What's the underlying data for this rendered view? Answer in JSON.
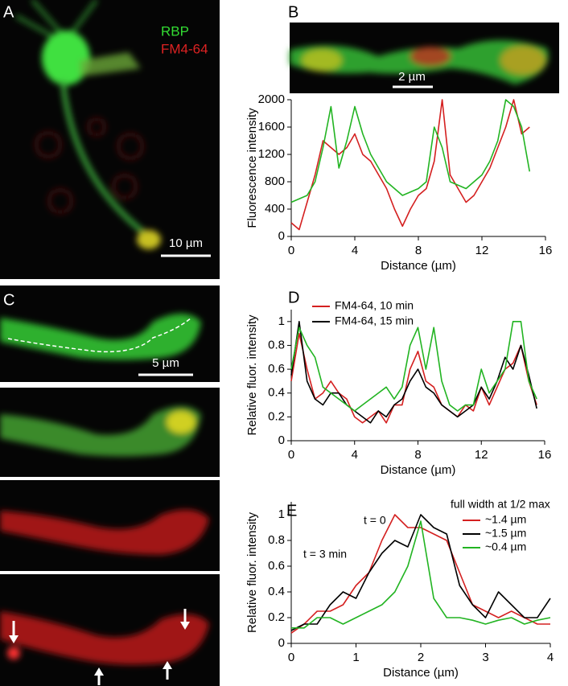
{
  "figure": {
    "panel_labels": [
      "A",
      "B",
      "C",
      "D",
      "E"
    ],
    "image_a": {
      "channels": [
        "RBP",
        "FM4-64"
      ],
      "scale_bar": "10 µm"
    },
    "image_b": {
      "scale_bar": "2 µm"
    },
    "image_c": {
      "scale_bar": "5 µm"
    }
  },
  "chart_data": [
    {
      "type": "line",
      "xlabel": "Distance (µm)",
      "ylabel": "Fluorescence intensity",
      "x": [
        0,
        0.5,
        1,
        1.5,
        2,
        2.5,
        3,
        3.5,
        4,
        4.5,
        5,
        5.5,
        6,
        6.5,
        7,
        7.5,
        8,
        8.5,
        9,
        9.5,
        10,
        10.5,
        11,
        11.5,
        12,
        12.5,
        13,
        13.5,
        14,
        14.5,
        15
      ],
      "series": [
        {
          "color": "#d42020",
          "values": [
            200,
            100,
            500,
            900,
            1400,
            1300,
            1200,
            1300,
            1500,
            1200,
            1100,
            900,
            700,
            400,
            150,
            400,
            600,
            700,
            1100,
            2000,
            900,
            700,
            500,
            600,
            800,
            1000,
            1300,
            1600,
            2000,
            1500,
            1600
          ]
        },
        {
          "color": "#22b422",
          "values": [
            500,
            550,
            600,
            800,
            1300,
            1900,
            1000,
            1400,
            1900,
            1500,
            1200,
            1000,
            800,
            700,
            600,
            650,
            700,
            800,
            1600,
            1300,
            800,
            750,
            700,
            800,
            900,
            1100,
            1400,
            2000,
            1900,
            1600,
            950
          ]
        }
      ],
      "xlim": [
        0,
        16
      ],
      "ylim": [
        0,
        2000
      ],
      "xticks": [
        0,
        4,
        8,
        12,
        16
      ],
      "yticks": [
        0,
        400,
        800,
        1200,
        1600,
        2000
      ]
    },
    {
      "type": "line",
      "xlabel": "Distance (µm)",
      "ylabel": "Relative fluor. intensity",
      "x": [
        0,
        0.5,
        1,
        1.5,
        2,
        2.5,
        3,
        3.5,
        4,
        4.5,
        5,
        5.5,
        6,
        6.5,
        7,
        7.5,
        8,
        8.5,
        9,
        9.5,
        10,
        10.5,
        11,
        11.5,
        12,
        12.5,
        13,
        13.5,
        14,
        14.5,
        15,
        15.5
      ],
      "series": [
        {
          "name": "FM4-64, 10 min",
          "color": "#d42020",
          "values": [
            0.5,
            0.9,
            0.6,
            0.35,
            0.4,
            0.5,
            0.4,
            0.35,
            0.2,
            0.15,
            0.2,
            0.25,
            0.15,
            0.3,
            0.3,
            0.6,
            0.75,
            0.5,
            0.45,
            0.3,
            0.25,
            0.2,
            0.3,
            0.25,
            0.45,
            0.3,
            0.45,
            0.6,
            0.65,
            0.8,
            0.5,
            0.3
          ]
        },
        {
          "name": "FM4-64, 15 min",
          "color": "#000000",
          "values": [
            0.55,
            1.0,
            0.5,
            0.35,
            0.3,
            0.4,
            0.4,
            0.3,
            0.25,
            0.2,
            0.15,
            0.25,
            0.2,
            0.3,
            0.35,
            0.5,
            0.6,
            0.45,
            0.4,
            0.3,
            0.25,
            0.2,
            0.25,
            0.3,
            0.45,
            0.35,
            0.5,
            0.7,
            0.6,
            0.8,
            0.55,
            0.27
          ]
        },
        {
          "color": "#22b422",
          "values": [
            0.6,
            0.95,
            0.8,
            0.7,
            0.45,
            0.4,
            0.35,
            0.3,
            0.25,
            0.3,
            0.35,
            0.4,
            0.45,
            0.35,
            0.45,
            0.8,
            0.95,
            0.6,
            0.95,
            0.5,
            0.3,
            0.25,
            0.3,
            0.3,
            0.6,
            0.4,
            0.5,
            0.6,
            1.0,
            1.0,
            0.5,
            0.35
          ]
        }
      ],
      "xlim": [
        0,
        16
      ],
      "ylim": [
        0,
        1.1
      ],
      "xticks": [
        0,
        4,
        8,
        12,
        16
      ],
      "yticks": [
        0,
        0.2,
        0.4,
        0.6,
        0.8,
        1
      ]
    },
    {
      "type": "line",
      "xlabel": "Distance (µm)",
      "ylabel": "Relative fluor. intensity",
      "legend_title": "full width at 1/2 max",
      "annotations": [
        "t = 0",
        "t = 3 min"
      ],
      "x": [
        0,
        0.2,
        0.4,
        0.6,
        0.8,
        1,
        1.2,
        1.4,
        1.6,
        1.8,
        2,
        2.2,
        2.4,
        2.6,
        2.8,
        3,
        3.2,
        3.4,
        3.6,
        3.8,
        4
      ],
      "series": [
        {
          "name": "~1.4 µm",
          "color": "#d42020",
          "values": [
            0.08,
            0.15,
            0.25,
            0.25,
            0.3,
            0.45,
            0.55,
            0.8,
            1.0,
            0.9,
            0.9,
            0.85,
            0.8,
            0.55,
            0.3,
            0.25,
            0.2,
            0.25,
            0.2,
            0.15,
            0.15
          ]
        },
        {
          "name": "~1.5 µm",
          "color": "#000000",
          "values": [
            0.1,
            0.15,
            0.15,
            0.3,
            0.4,
            0.35,
            0.55,
            0.7,
            0.8,
            0.75,
            1.0,
            0.9,
            0.85,
            0.45,
            0.3,
            0.2,
            0.4,
            0.3,
            0.2,
            0.2,
            0.35
          ]
        },
        {
          "name": "~0.4 µm",
          "color": "#22b422",
          "values": [
            0.12,
            0.12,
            0.2,
            0.2,
            0.15,
            0.2,
            0.25,
            0.3,
            0.4,
            0.6,
            0.95,
            0.35,
            0.2,
            0.2,
            0.18,
            0.15,
            0.18,
            0.2,
            0.15,
            0.18,
            0.2
          ]
        }
      ],
      "xlim": [
        0,
        4
      ],
      "ylim": [
        0,
        1.1
      ],
      "xticks": [
        0,
        1,
        2,
        3,
        4
      ],
      "yticks": [
        0,
        0.2,
        0.4,
        0.6,
        0.8,
        1
      ]
    }
  ]
}
